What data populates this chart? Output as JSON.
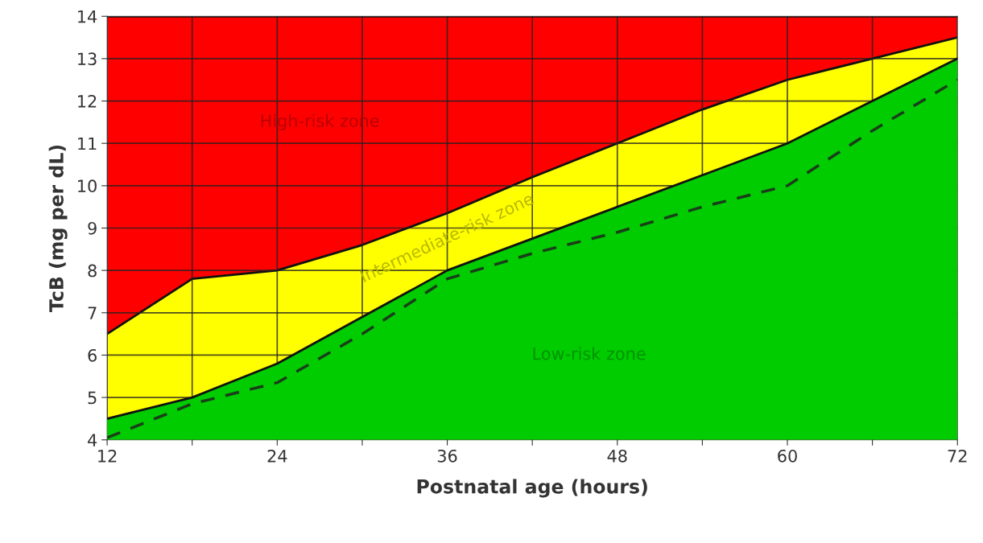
{
  "chart_data": {
    "type": "area",
    "xlabel": "Postnatal age (hours)",
    "ylabel": "TcB (mg per dL)",
    "x": [
      12,
      18,
      24,
      30,
      36,
      42,
      48,
      54,
      60,
      66,
      72
    ],
    "series": [
      {
        "name": "High-risk zone",
        "color": "#ff0000",
        "values": [
          14,
          14,
          14,
          14,
          14,
          14,
          14,
          14,
          14,
          14,
          14
        ]
      },
      {
        "name": "Intermediate-risk zone",
        "color": "#ffff00",
        "values": [
          6.5,
          7.8,
          8.0,
          8.6,
          9.35,
          10.2,
          11.0,
          11.8,
          12.5,
          13.0,
          13.5
        ]
      },
      {
        "name": "Low-risk zone",
        "color": "#00cc00",
        "values": [
          4.5,
          5.0,
          5.8,
          6.9,
          8.0,
          8.75,
          9.5,
          10.25,
          11.0,
          12.0,
          13.0
        ]
      },
      {
        "type": "line",
        "color": "#1a3d1a",
        "line_style": "dashed",
        "values": [
          4.05,
          4.85,
          5.35,
          6.5,
          7.8,
          8.4,
          8.9,
          9.5,
          10.0,
          11.3,
          12.5
        ]
      }
    ],
    "xlim": [
      12,
      72
    ],
    "ylim": [
      4,
      14
    ],
    "xticks": [
      12,
      {
        "value": 18,
        "label": null
      },
      24,
      {
        "value": 30,
        "label": null
      },
      36,
      {
        "value": 42,
        "label": null
      },
      48,
      {
        "value": 54,
        "label": null
      },
      60,
      {
        "value": 66,
        "label": null
      },
      72
    ],
    "yticks": [
      4,
      5,
      6,
      7,
      8,
      9,
      10,
      11,
      12,
      13,
      14
    ],
    "grid": true,
    "legend": false
  }
}
